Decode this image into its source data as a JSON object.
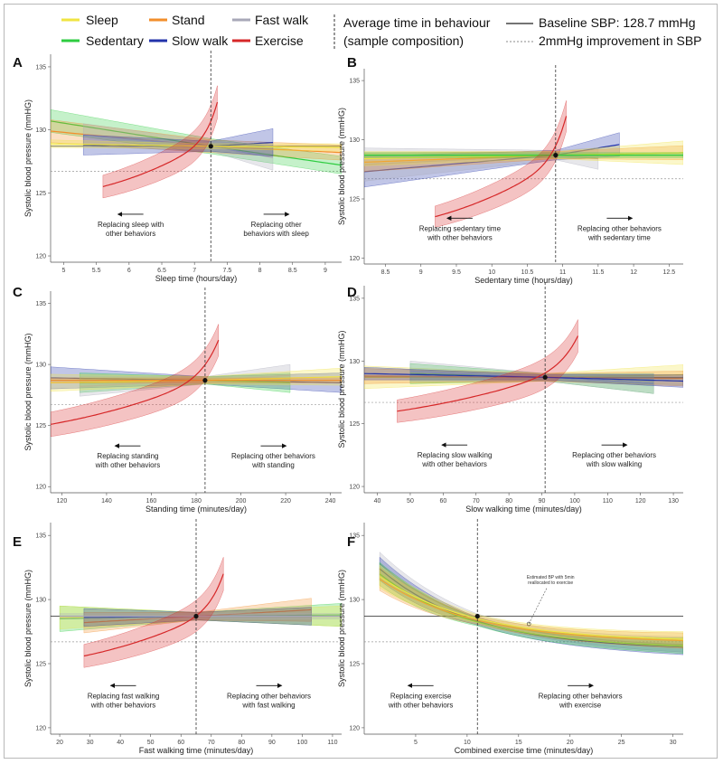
{
  "legend": {
    "items": [
      {
        "name": "Sleep",
        "color": "#f0e442"
      },
      {
        "name": "Sedentary",
        "color": "#2ecc40"
      },
      {
        "name": "Stand",
        "color": "#f28e2b"
      },
      {
        "name": "Slow walk",
        "color": "#2233aa"
      },
      {
        "name": "Fast walk",
        "color": "#a8a8b8"
      },
      {
        "name": "Exercise",
        "color": "#d62728"
      }
    ],
    "avg_time_line1": "Average time in behaviour",
    "avg_time_line2": "(sample composition)",
    "baseline_label": "Baseline SBP: 128.7 mmHg",
    "improvement_label": "2mmHg improvement in SBP"
  },
  "chart_data": [
    {
      "panel": "A",
      "type": "line",
      "title": "A",
      "xlabel": "Sleep time (hours/day)",
      "ylabel": "Systolic blood pressure (mmHG)",
      "xlim": [
        4.8,
        9.25
      ],
      "ylim": [
        119.5,
        136
      ],
      "xticks": [
        5,
        5.5,
        6,
        6.5,
        7,
        7.5,
        8,
        8.5,
        9
      ],
      "yticks": [
        120,
        125,
        130,
        135
      ],
      "baseline": 128.7,
      "improvement": 126.7,
      "avg_x": 7.25,
      "annot_left": [
        "Replacing sleep with",
        "other behaviors"
      ],
      "annot_right": [
        "Replacing other",
        "behaviors with sleep"
      ],
      "series": [
        {
          "name": "Sedentary",
          "x": [
            4.8,
            9.25
          ],
          "start": 130.7,
          "end": 127.2,
          "halfwidth": [
            0.9,
            0.6,
            0.7
          ]
        },
        {
          "name": "Stand",
          "x": [
            4.8,
            9.25
          ],
          "start": 129.9,
          "end": 128.2,
          "halfwidth": [
            0.9,
            0.5,
            0.6
          ]
        },
        {
          "name": "Fast walk",
          "x": [
            5.3,
            8.2
          ],
          "start": 129.6,
          "end": 127.8,
          "halfwidth": [
            0.9,
            0.4,
            1.0
          ]
        },
        {
          "name": "Slow walk",
          "x": [
            5.3,
            8.2
          ],
          "start": 128.8,
          "end": 129.0,
          "halfwidth": [
            0.8,
            0.4,
            1.1
          ]
        },
        {
          "name": "Sleep",
          "x": [
            4.8,
            9.25
          ],
          "start": 128.9,
          "end": 128.6,
          "halfwidth": [
            0.3,
            0.2,
            0.3
          ]
        },
        {
          "name": "Exercise",
          "x": [
            5.6,
            7.35
          ],
          "start": 125.5,
          "end": 132.2,
          "halfwidth": [
            0.9,
            0.3,
            1.3
          ]
        }
      ]
    },
    {
      "panel": "B",
      "type": "line",
      "title": "B",
      "xlabel": "Sedentary time (hours/day)",
      "ylabel": "Systolic blood pressure (mmHG)",
      "xlim": [
        8.2,
        12.7
      ],
      "ylim": [
        119.5,
        136
      ],
      "xticks": [
        8.5,
        9,
        9.5,
        10,
        10.5,
        11,
        11.5,
        12,
        12.5
      ],
      "yticks": [
        120,
        125,
        130,
        135
      ],
      "baseline": 128.7,
      "improvement": 126.7,
      "avg_x": 10.9,
      "annot_left": [
        "Replacing sedentary time",
        "with other behaviors"
      ],
      "annot_right": [
        "Replacing other behaviors",
        "with sedentary time"
      ],
      "series": [
        {
          "name": "Slow walk",
          "x": [
            8.2,
            11.8
          ],
          "start": 127.3,
          "end": 129.6,
          "halfwidth": [
            1.3,
            0.4,
            1.0
          ]
        },
        {
          "name": "Fast walk",
          "x": [
            8.2,
            11.5
          ],
          "start": 127.9,
          "end": 128.4,
          "halfwidth": [
            1.4,
            0.4,
            0.9
          ]
        },
        {
          "name": "Stand",
          "x": [
            8.2,
            12.7
          ],
          "start": 128.1,
          "end": 128.9,
          "halfwidth": [
            0.8,
            0.3,
            0.6
          ]
        },
        {
          "name": "Sleep",
          "x": [
            8.2,
            12.7
          ],
          "start": 128.4,
          "end": 128.9,
          "halfwidth": [
            0.6,
            0.3,
            1.0
          ]
        },
        {
          "name": "Sedentary",
          "x": [
            8.2,
            12.7
          ],
          "start": 128.7,
          "end": 128.7,
          "halfwidth": [
            0.2,
            0.2,
            0.2
          ]
        },
        {
          "name": "Exercise",
          "x": [
            9.2,
            11.05
          ],
          "start": 123.5,
          "end": 132.0,
          "halfwidth": [
            0.9,
            0.3,
            1.3
          ]
        }
      ]
    },
    {
      "panel": "C",
      "type": "line",
      "title": "C",
      "xlabel": "Standing time (minutes/day)",
      "ylabel": "Systolic blood pressure (mmHG)",
      "xlim": [
        115,
        245
      ],
      "ylim": [
        119.5,
        136
      ],
      "xticks": [
        120,
        140,
        160,
        180,
        200,
        220,
        240
      ],
      "yticks": [
        120,
        125,
        130,
        135
      ],
      "baseline": 128.7,
      "improvement": 126.7,
      "avg_x": 184,
      "annot_left": [
        "Replacing standing",
        "with other behaviors"
      ],
      "annot_right": [
        "Replacing other behaviors",
        "with standing"
      ],
      "series": [
        {
          "name": "Slow walk",
          "x": [
            115,
            245
          ],
          "start": 128.9,
          "end": 128.5,
          "halfwidth": [
            0.9,
            0.3,
            0.8
          ]
        },
        {
          "name": "Sedentary",
          "x": [
            128,
            222
          ],
          "start": 128.5,
          "end": 128.5,
          "halfwidth": [
            0.8,
            0.3,
            0.8
          ]
        },
        {
          "name": "Fast walk",
          "x": [
            128,
            222
          ],
          "start": 128.2,
          "end": 129.1,
          "halfwidth": [
            0.8,
            0.3,
            0.9
          ]
        },
        {
          "name": "Sleep",
          "x": [
            115,
            245
          ],
          "start": 128.5,
          "end": 129.0,
          "halfwidth": [
            0.7,
            0.3,
            0.7
          ]
        },
        {
          "name": "Stand",
          "x": [
            115,
            245
          ],
          "start": 128.7,
          "end": 128.7,
          "halfwidth": [
            0.2,
            0.2,
            0.2
          ]
        },
        {
          "name": "Exercise",
          "x": [
            115,
            190
          ],
          "start": 125.1,
          "end": 132.0,
          "halfwidth": [
            1.0,
            0.3,
            1.3
          ]
        }
      ]
    },
    {
      "panel": "D",
      "type": "line",
      "title": "D",
      "xlabel": "Slow walking time (minutes/day)",
      "ylabel": "Systolic blood pressure (mmHG)",
      "xlim": [
        36,
        133
      ],
      "ylim": [
        119.5,
        136
      ],
      "xticks": [
        40,
        50,
        60,
        70,
        80,
        90,
        100,
        110,
        120,
        130
      ],
      "yticks": [
        120,
        125,
        130,
        135
      ],
      "baseline": 128.7,
      "improvement": 126.7,
      "avg_x": 91,
      "annot_left": [
        "Replacing slow walking",
        "with other behaviors"
      ],
      "annot_right": [
        "Replacing other behaviors",
        "with slow walking"
      ],
      "series": [
        {
          "name": "Sleep",
          "x": [
            36,
            133
          ],
          "start": 128.7,
          "end": 128.9,
          "halfwidth": [
            0.9,
            0.3,
            0.8
          ]
        },
        {
          "name": "Sedentary",
          "x": [
            50,
            124
          ],
          "start": 129.0,
          "end": 128.2,
          "halfwidth": [
            0.8,
            0.3,
            0.8
          ]
        },
        {
          "name": "Stand",
          "x": [
            36,
            133
          ],
          "start": 128.8,
          "end": 128.6,
          "halfwidth": [
            0.6,
            0.3,
            0.6
          ]
        },
        {
          "name": "Fast walk",
          "x": [
            50,
            124
          ],
          "start": 129.2,
          "end": 128.2,
          "halfwidth": [
            0.8,
            0.3,
            0.8
          ]
        },
        {
          "name": "Slow walk",
          "x": [
            36,
            133
          ],
          "start": 129.0,
          "end": 128.4,
          "halfwidth": [
            0.5,
            0.2,
            0.5
          ]
        },
        {
          "name": "Exercise",
          "x": [
            46,
            101
          ],
          "start": 126.0,
          "end": 132.0,
          "halfwidth": [
            0.9,
            0.3,
            1.3
          ]
        }
      ]
    },
    {
      "panel": "E",
      "type": "line",
      "title": "E",
      "xlabel": "Fast walking time (minutes/day)",
      "ylabel": "Systolic blood pressure (mmHG)",
      "xlim": [
        17,
        113
      ],
      "ylim": [
        119.5,
        136
      ],
      "xticks": [
        20,
        30,
        40,
        50,
        60,
        70,
        80,
        90,
        100,
        110
      ],
      "yticks": [
        120,
        125,
        130,
        135
      ],
      "baseline": 128.7,
      "improvement": 126.7,
      "avg_x": 65,
      "annot_left": [
        "Replacing fast walking",
        "with other behaviors"
      ],
      "annot_right": [
        "Replacing other behaviors",
        "with fast walking"
      ],
      "series": [
        {
          "name": "Sedentary",
          "x": [
            20,
            113
          ],
          "start": 128.5,
          "end": 128.8,
          "halfwidth": [
            1.0,
            0.3,
            0.9
          ]
        },
        {
          "name": "Sleep",
          "x": [
            20,
            113
          ],
          "start": 128.6,
          "end": 128.7,
          "halfwidth": [
            0.9,
            0.3,
            0.8
          ]
        },
        {
          "name": "Stand",
          "x": [
            28,
            103
          ],
          "start": 128.2,
          "end": 129.2,
          "halfwidth": [
            0.8,
            0.3,
            0.9
          ]
        },
        {
          "name": "Slow walk",
          "x": [
            28,
            103
          ],
          "start": 128.6,
          "end": 128.7,
          "halfwidth": [
            0.7,
            0.3,
            0.7
          ]
        },
        {
          "name": "Fast walk",
          "x": [
            20,
            113
          ],
          "start": 128.7,
          "end": 128.7,
          "halfwidth": [
            0.2,
            0.2,
            0.2
          ]
        },
        {
          "name": "Exercise",
          "x": [
            28,
            74
          ],
          "start": 125.6,
          "end": 132.0,
          "halfwidth": [
            0.9,
            0.3,
            1.3
          ]
        }
      ]
    },
    {
      "panel": "F",
      "type": "line",
      "title": "F",
      "xlabel": "Combined exercise time (minutes/day)",
      "ylabel": "Systolic blood pressure (mmHG)",
      "xlim": [
        0,
        31
      ],
      "ylim": [
        119.5,
        136
      ],
      "xticks": [
        5,
        10,
        15,
        20,
        25,
        30
      ],
      "yticks": [
        120,
        125,
        130,
        135
      ],
      "baseline": 128.7,
      "improvement": 126.7,
      "avg_x": 11,
      "annot_left": [
        "Replacing exercise",
        "with other behaviors"
      ],
      "annot_right": [
        "Replacing other behaviors",
        "with exercise"
      ],
      "callout": [
        "Estimated BP with 5min",
        "reallocated to exercise"
      ],
      "series": [
        {
          "name": "Fast walk",
          "x": [
            1.5,
            31
          ],
          "start": 132.8,
          "end": 126.5,
          "halfwidth": [
            0.9,
            0.3,
            0.6
          ],
          "curve": "decay"
        },
        {
          "name": "Slow walk",
          "x": [
            1.5,
            31
          ],
          "start": 132.4,
          "end": 126.3,
          "halfwidth": [
            0.9,
            0.3,
            0.6
          ],
          "curve": "decay"
        },
        {
          "name": "Sedentary",
          "x": [
            1.5,
            31
          ],
          "start": 132.0,
          "end": 126.4,
          "halfwidth": [
            0.9,
            0.3,
            0.6
          ],
          "curve": "decay"
        },
        {
          "name": "Stand",
          "x": [
            1.5,
            31
          ],
          "start": 131.6,
          "end": 126.8,
          "halfwidth": [
            0.9,
            0.3,
            0.6
          ],
          "curve": "decay"
        },
        {
          "name": "Sleep",
          "x": [
            1.5,
            31
          ],
          "start": 131.8,
          "end": 126.9,
          "halfwidth": [
            0.9,
            0.3,
            0.6
          ],
          "curve": "decay"
        }
      ]
    }
  ]
}
